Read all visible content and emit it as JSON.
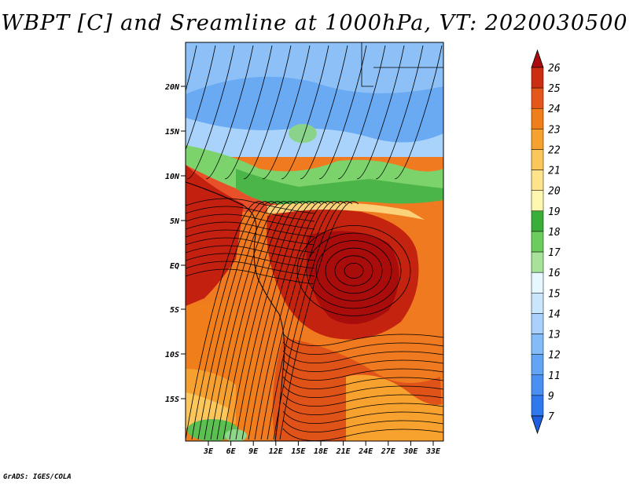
{
  "title": "WBPT [C] and Sreamline at 1000hPa, VT: 2020030500",
  "footer": "GrADS: IGES/COLA",
  "axes": {
    "lat_labels": [
      "20N",
      "15N",
      "10N",
      "5N",
      "EQ",
      "5S",
      "10S",
      "15S"
    ],
    "lon_labels": [
      "3E",
      "6E",
      "9E",
      "12E",
      "15E",
      "18E",
      "21E",
      "24E",
      "27E",
      "30E",
      "33E"
    ]
  },
  "colorbar": {
    "levels": [
      "7",
      "9",
      "11",
      "12",
      "13",
      "14",
      "15",
      "16",
      "17",
      "18",
      "19",
      "20",
      "21",
      "22",
      "23",
      "24",
      "25",
      "26"
    ],
    "colors": [
      "#1e5fe0",
      "#2f78ee",
      "#4a90f2",
      "#62a4f5",
      "#84bcf8",
      "#a8d2fb",
      "#c9e6fd",
      "#e6f7ff",
      "#a6e29a",
      "#6ccd5e",
      "#3aae38",
      "#fff7b0",
      "#fde48c",
      "#fbc65a",
      "#f7a12e",
      "#f07f1b",
      "#e5561a",
      "#cc2e12",
      "#a80c0c"
    ]
  },
  "colors": {
    "cold_blue": "#6aaaf3",
    "green": "#7dd36b",
    "warm_orange": "#f0801c",
    "hot_red": "#b31a0d"
  }
}
